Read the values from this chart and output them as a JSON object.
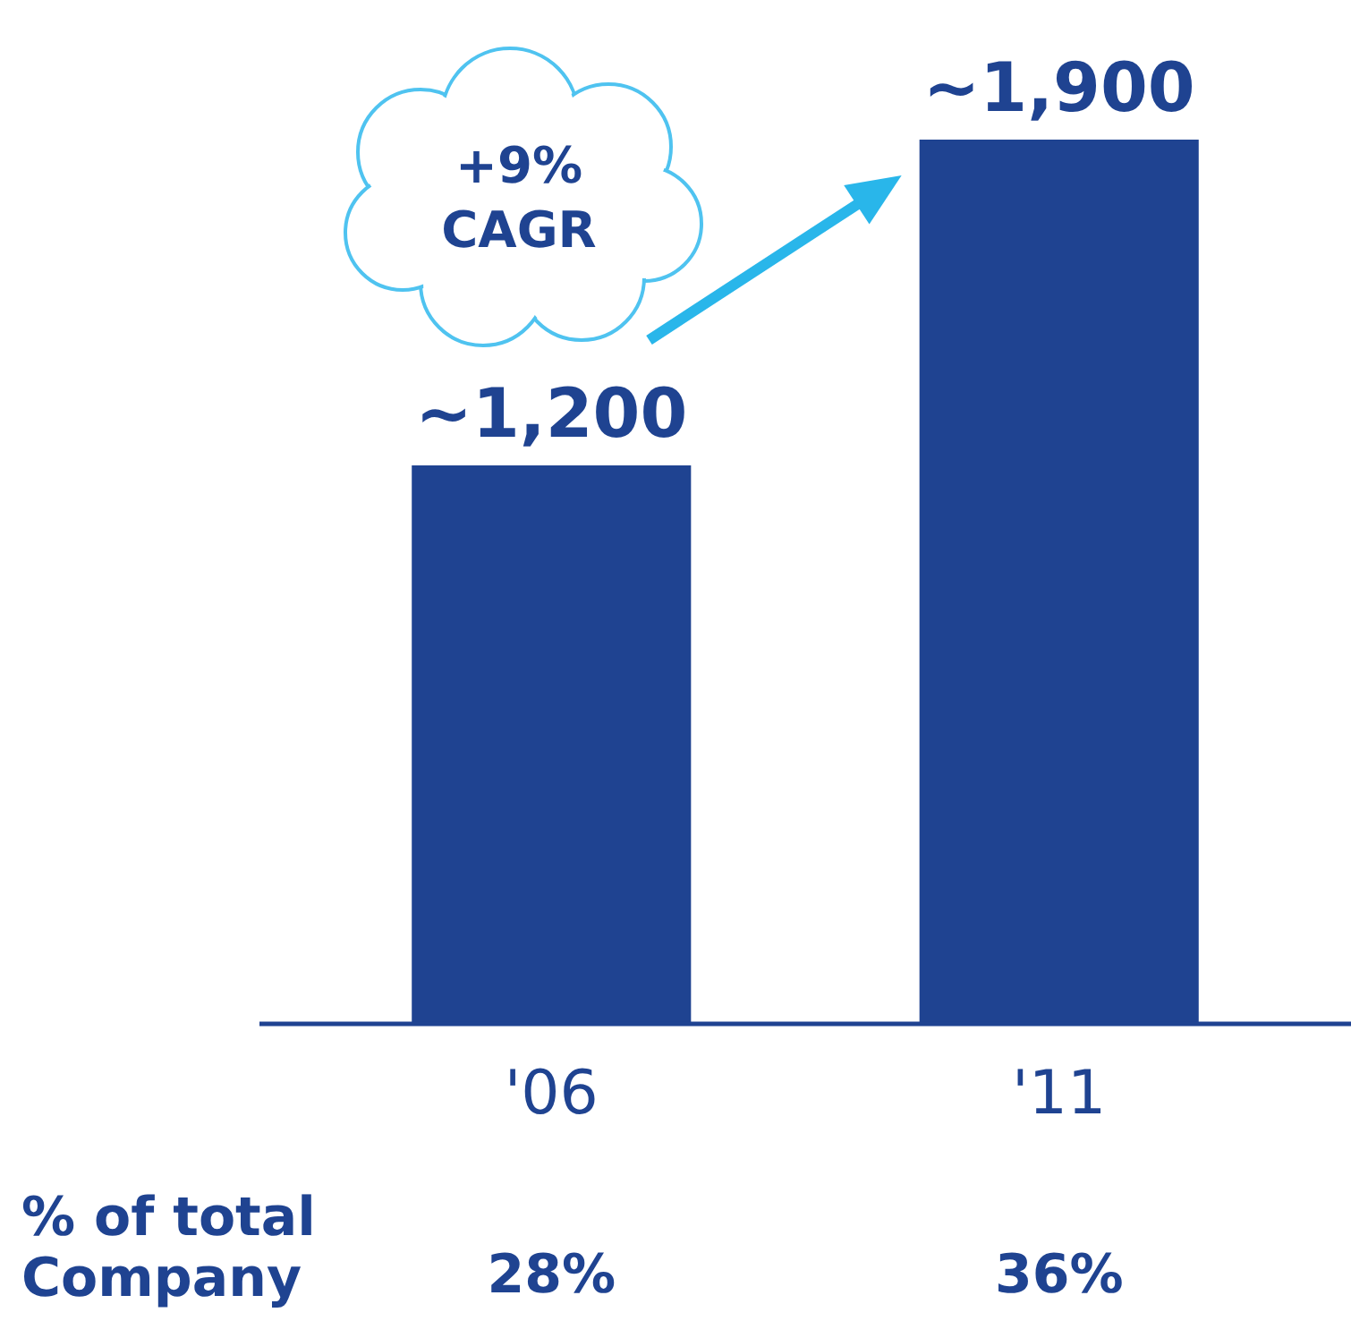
{
  "chart_data": {
    "type": "bar",
    "categories": [
      "'06",
      "'11"
    ],
    "values": [
      1200,
      1900
    ],
    "color": "#1f4391",
    "value_labels": [
      "~1,200",
      "~1,900"
    ],
    "annotations": [
      "+9% CAGR",
      "% of total Company",
      "28%",
      "36%"
    ]
  }
}
